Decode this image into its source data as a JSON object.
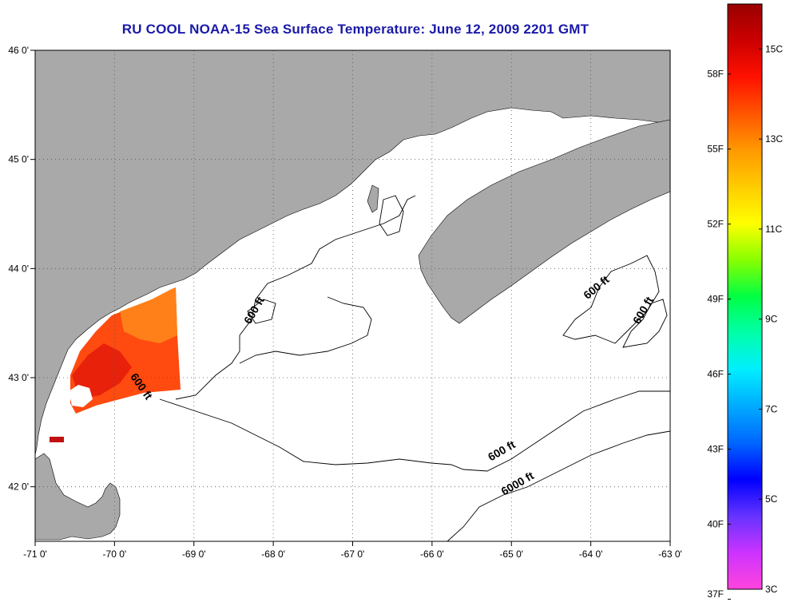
{
  "title": "RU COOL  NOAA-15  Sea Surface Temperature:  June 12, 2009 2201 GMT",
  "map": {
    "lon_range": [
      -71,
      -63
    ],
    "lat_range": [
      41.5,
      46
    ],
    "grid": true,
    "land_color": "#a9a9a9",
    "water_color": "#ffffff",
    "lon_ticks": [
      {
        "value": -71,
        "label": "-71 0'"
      },
      {
        "value": -70,
        "label": "-70 0'"
      },
      {
        "value": -69,
        "label": "-69 0'"
      },
      {
        "value": -68,
        "label": "-68 0'"
      },
      {
        "value": -67,
        "label": "-67 0'"
      },
      {
        "value": -66,
        "label": "-66 0'"
      },
      {
        "value": -65,
        "label": "-65 0'"
      },
      {
        "value": -64,
        "label": "-64 0'"
      },
      {
        "value": -63,
        "label": "-63 0'"
      }
    ],
    "lat_ticks": [
      {
        "value": 46,
        "label": "46 0'"
      },
      {
        "value": 45,
        "label": "45 0'"
      },
      {
        "value": 44,
        "label": "44 0'"
      },
      {
        "value": 43,
        "label": "43 0'"
      },
      {
        "value": 42,
        "label": "42 0'"
      }
    ],
    "contour_labels": [
      {
        "text": "600 ft",
        "lon": -68.2,
        "lat": 43.6,
        "angle": -60
      },
      {
        "text": "600 ft",
        "lon": -69.7,
        "lat": 42.9,
        "angle": 55
      },
      {
        "text": "600 ft",
        "lon": -63.9,
        "lat": 43.8,
        "angle": -40
      },
      {
        "text": "600 ft",
        "lon": -63.3,
        "lat": 43.6,
        "angle": -60
      },
      {
        "text": "600 ft",
        "lon": -65.1,
        "lat": 42.3,
        "angle": -30
      },
      {
        "text": "6000 ft",
        "lon": -64.9,
        "lat": 42.0,
        "angle": -30
      }
    ]
  },
  "colorbar": {
    "range_c": [
      3,
      16
    ],
    "colors": [
      "#ff44dd",
      "#cc33ff",
      "#6633ff",
      "#0000ff",
      "#0066ff",
      "#00aaff",
      "#00eeff",
      "#00ffaa",
      "#00ff44",
      "#88ff00",
      "#ffff00",
      "#ffcc00",
      "#ff9900",
      "#ff5500",
      "#ff1100",
      "#cc0000",
      "#990000"
    ],
    "celsius_labels": [
      {
        "value": 15,
        "label": "15C"
      },
      {
        "value": 13,
        "label": "13C"
      },
      {
        "value": 11,
        "label": "11C"
      },
      {
        "value": 9,
        "label": "9C"
      },
      {
        "value": 7,
        "label": "7C"
      },
      {
        "value": 5,
        "label": "5C"
      },
      {
        "value": 3,
        "label": "3C"
      }
    ],
    "fahrenheit_labels": [
      {
        "value": 58,
        "label": "58F"
      },
      {
        "value": 55,
        "label": "55F"
      },
      {
        "value": 52,
        "label": "52F"
      },
      {
        "value": 49,
        "label": "49F"
      },
      {
        "value": 46,
        "label": "46F"
      },
      {
        "value": 43,
        "label": "43F"
      },
      {
        "value": 40,
        "label": "40F"
      },
      {
        "value": 37,
        "label": "37F"
      }
    ]
  }
}
